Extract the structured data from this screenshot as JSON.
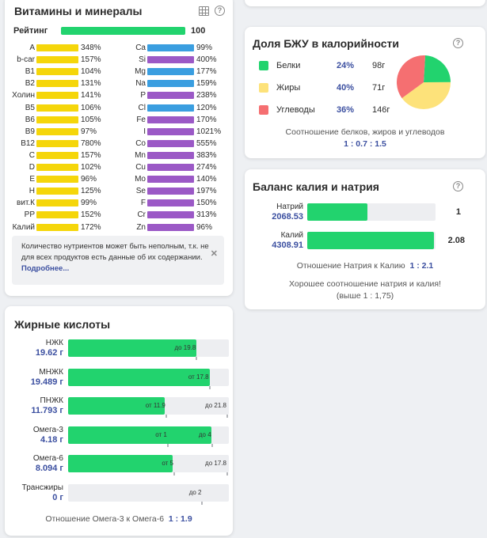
{
  "vitamins": {
    "title": "Витамины и минералы",
    "rating_label": "Рейтинг",
    "rating_value": "100",
    "rating_fraction": 1.0,
    "bar_colors": {
      "vitamin": "#f5d60a",
      "mineral": "#3a9ee0",
      "trace": "#9b59c6"
    },
    "left": [
      {
        "label": "A",
        "value": "348%"
      },
      {
        "label": "b-car",
        "value": "157%"
      },
      {
        "label": "B1",
        "value": "104%"
      },
      {
        "label": "B2",
        "value": "131%"
      },
      {
        "label": "Холин",
        "value": "141%"
      },
      {
        "label": "B5",
        "value": "106%"
      },
      {
        "label": "B6",
        "value": "105%"
      },
      {
        "label": "B9",
        "value": "97%"
      },
      {
        "label": "B12",
        "value": "780%"
      },
      {
        "label": "C",
        "value": "157%"
      },
      {
        "label": "D",
        "value": "102%"
      },
      {
        "label": "E",
        "value": "96%"
      },
      {
        "label": "H",
        "value": "125%"
      },
      {
        "label": "вит.К",
        "value": "99%"
      },
      {
        "label": "PP",
        "value": "152%"
      },
      {
        "label": "Калий",
        "value": "172%"
      }
    ],
    "right": [
      {
        "label": "Ca",
        "value": "99%"
      },
      {
        "label": "Si",
        "value": "400%"
      },
      {
        "label": "Mg",
        "value": "177%"
      },
      {
        "label": "Na",
        "value": "159%"
      },
      {
        "label": "P",
        "value": "238%"
      },
      {
        "label": "Cl",
        "value": "120%"
      },
      {
        "label": "Fe",
        "value": "170%"
      },
      {
        "label": "I",
        "value": "1021%"
      },
      {
        "label": "Co",
        "value": "555%"
      },
      {
        "label": "Mn",
        "value": "383%"
      },
      {
        "label": "Cu",
        "value": "274%"
      },
      {
        "label": "Mo",
        "value": "140%"
      },
      {
        "label": "Se",
        "value": "197%"
      },
      {
        "label": "F",
        "value": "150%"
      },
      {
        "label": "Cr",
        "value": "313%"
      },
      {
        "label": "Zn",
        "value": "96%"
      }
    ],
    "info_text": "Количество нутриентов может быть неполным, т.к. не для всех продуктов есть данные об их содержании.",
    "info_link": "Подробнее..."
  },
  "fatty": {
    "title": "Жирные кислоты",
    "rows": [
      {
        "name": "НЖК",
        "value": "19.62 г",
        "fill": 0.8,
        "marks": [
          {
            "text": "до 19.8",
            "at": 0.795
          }
        ]
      },
      {
        "name": "МНЖК",
        "value": "19.489 г",
        "fill": 0.88,
        "marks": [
          {
            "text": "от 17.8",
            "at": 0.875
          }
        ]
      },
      {
        "name": "ПНЖК",
        "value": "11.793 г",
        "fill": 0.6,
        "marks": [
          {
            "text": "от 11.9",
            "at": 0.605
          },
          {
            "text": "до 21.8",
            "at": 0.985
          }
        ]
      },
      {
        "name": "Омега-3",
        "value": "4.18 г",
        "fill": 0.89,
        "marks": [
          {
            "text": "от 1",
            "at": 0.615
          },
          {
            "text": "до 4",
            "at": 0.89
          }
        ]
      },
      {
        "name": "Омега-6",
        "value": "8.094 г",
        "fill": 0.65,
        "marks": [
          {
            "text": "от 5",
            "at": 0.655
          },
          {
            "text": "до 17.8",
            "at": 0.985
          }
        ]
      },
      {
        "name": "Трансжиры",
        "value": "0 г",
        "fill": 0.0,
        "marks": [
          {
            "text": "до 2",
            "at": 0.83
          }
        ]
      }
    ],
    "ratio_text": "Отношение Омега-3 к Омега-6",
    "ratio_value": "1 : 1.9"
  },
  "bju": {
    "title": "Доля БЖУ в калорийности",
    "items": [
      {
        "name": "Белки",
        "pct": "24%",
        "grams": "98г",
        "color": "#22d36e",
        "share": 0.24
      },
      {
        "name": "Жиры",
        "pct": "40%",
        "grams": "71г",
        "color": "#fde27a",
        "share": 0.4
      },
      {
        "name": "Углеводы",
        "pct": "36%",
        "grams": "146г",
        "color": "#f56f71",
        "share": 0.36
      }
    ],
    "caption": "Соотношение белков, жиров и углеводов",
    "ratio": "1 : 0.7 : 1.5"
  },
  "kna": {
    "title": "Баланс калия и натрия",
    "rows": [
      {
        "name": "Натрий",
        "value": "2068.53",
        "fill": 0.47,
        "right": "1"
      },
      {
        "name": "Калий",
        "value": "4308.91",
        "fill": 0.99,
        "right": "2.08"
      }
    ],
    "ratio_text": "Отношение Натрия к Калию",
    "ratio_value": "1 : 2.1",
    "note": "Хорошее соотношение натрия и калия! (выше 1 : 1,75)"
  }
}
